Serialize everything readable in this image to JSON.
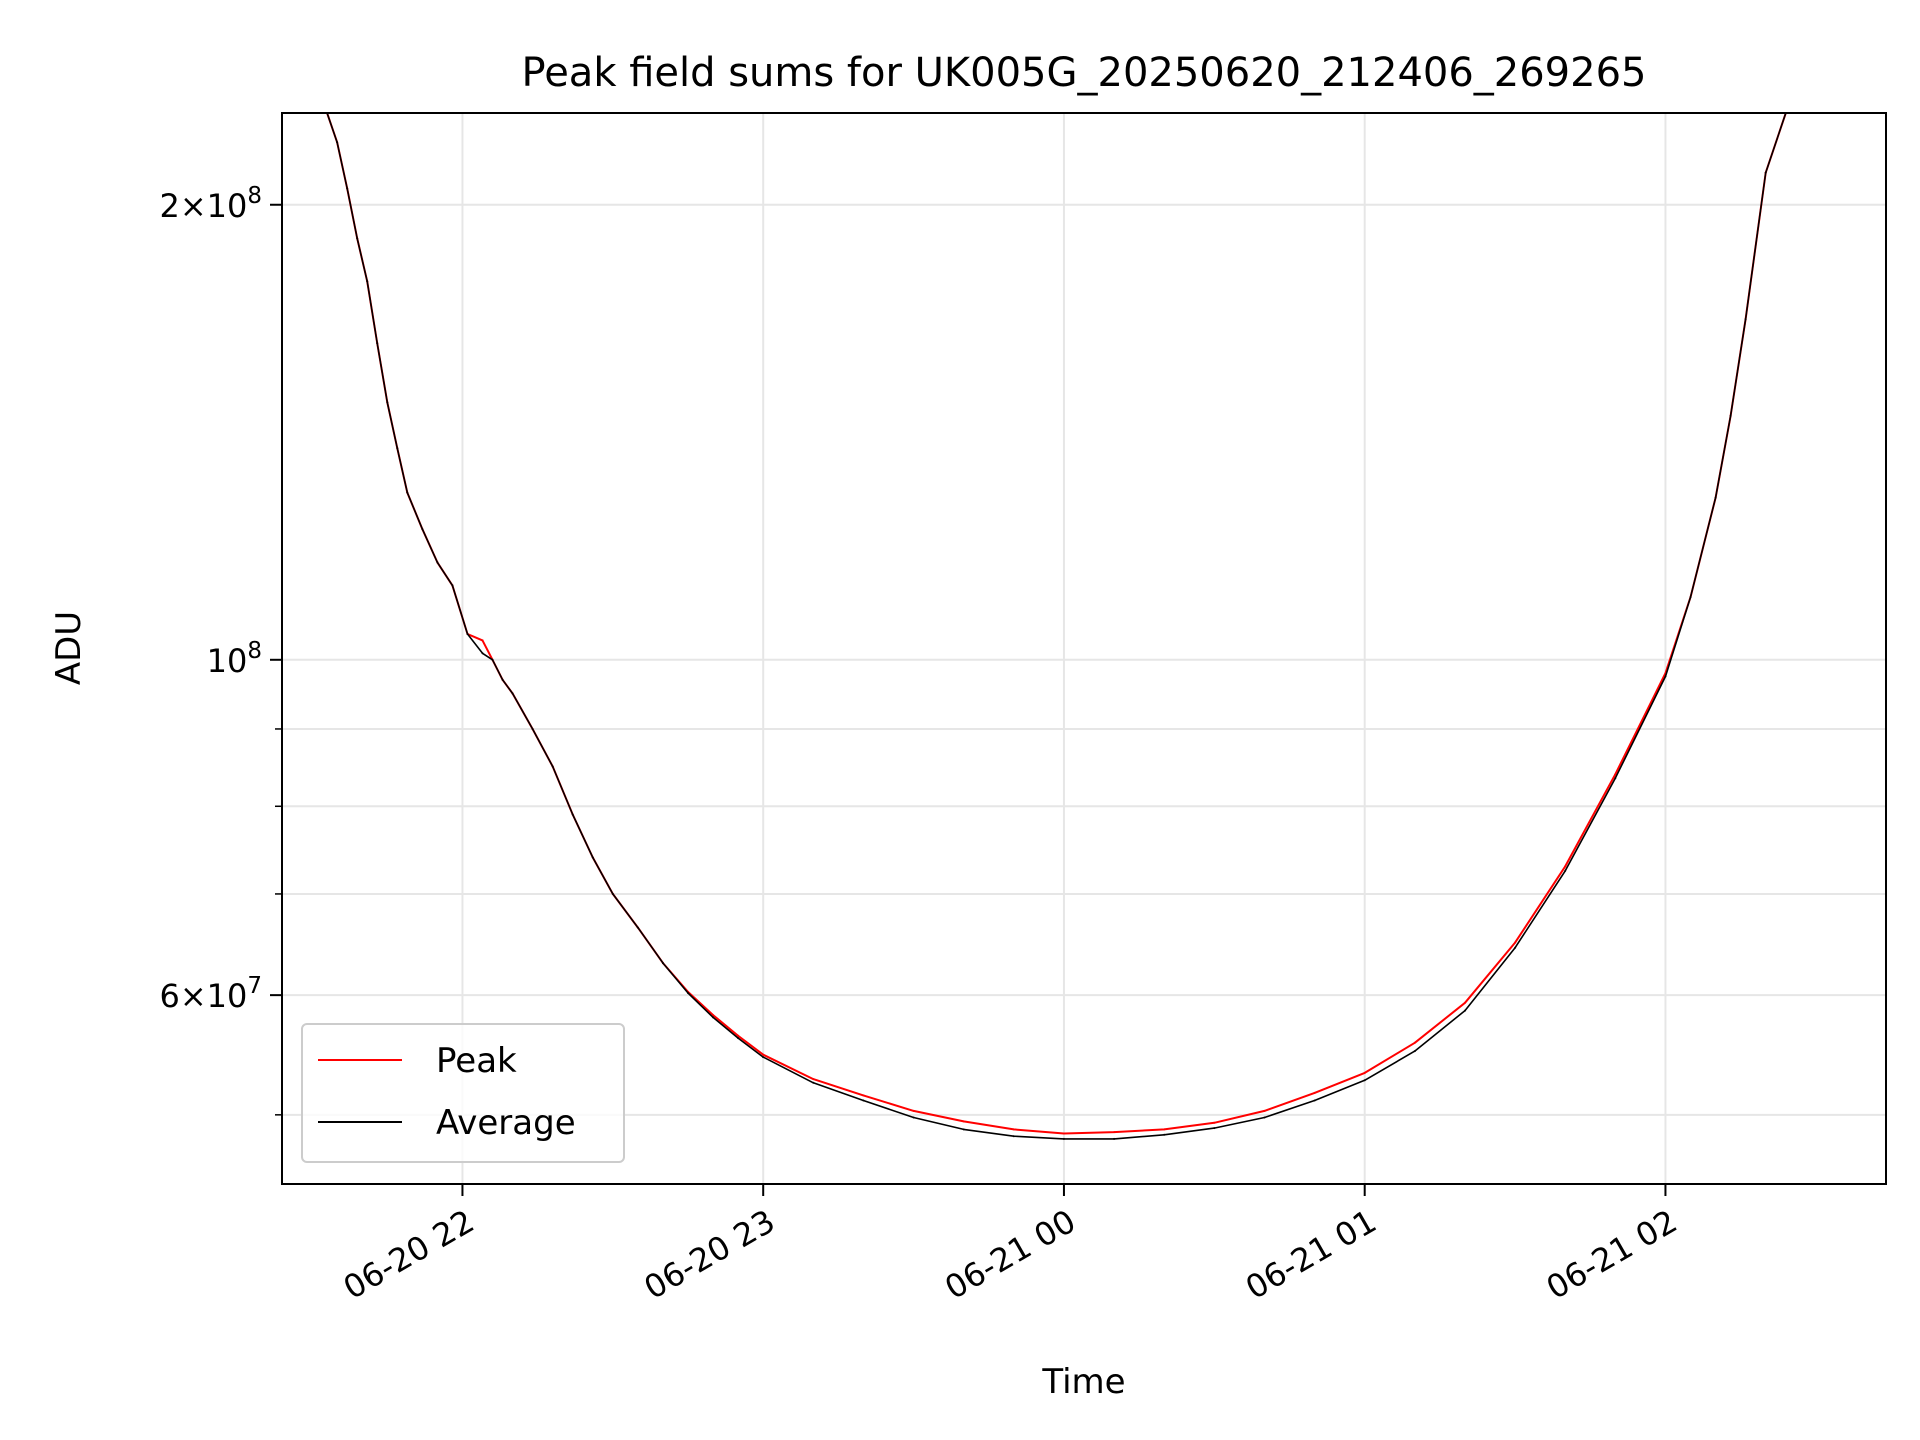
{
  "chart_data": {
    "type": "line",
    "title": "Peak field sums for UK005G_20250620_212406_269265",
    "xlabel": "Time",
    "ylabel": "ADU",
    "yscale": "log",
    "xlim": [
      "2025-06-20 21:24",
      "2025-06-21 02:44"
    ],
    "ylim": [
      45000000,
      230000000
    ],
    "x_ticks": [
      {
        "value": "2025-06-20 22:00",
        "label": "06-20 22"
      },
      {
        "value": "2025-06-20 23:00",
        "label": "06-20 23"
      },
      {
        "value": "2025-06-21 00:00",
        "label": "06-21 00"
      },
      {
        "value": "2025-06-21 01:00",
        "label": "06-21 01"
      },
      {
        "value": "2025-06-21 02:00",
        "label": "06-21 02"
      }
    ],
    "y_ticks": [
      {
        "value": 200000000,
        "base": "2",
        "times": "×",
        "pow": "10",
        "exp": "8"
      },
      {
        "value": 100000000,
        "base": "",
        "times": "",
        "pow": "10",
        "exp": "8"
      },
      {
        "value": 60000000,
        "base": "6",
        "times": "×",
        "pow": "10",
        "exp": "7"
      }
    ],
    "y_minor_ticks": [
      50000000,
      70000000,
      80000000,
      90000000
    ],
    "grid": true,
    "legend_position": "lower-left",
    "series": [
      {
        "name": "Peak",
        "color": "#ff0000",
        "x": [
          "2025-06-20 21:24",
          "2025-06-20 21:33",
          "2025-06-20 21:35",
          "2025-06-20 21:37",
          "2025-06-20 21:39",
          "2025-06-20 21:41",
          "2025-06-20 21:43",
          "2025-06-20 21:45",
          "2025-06-20 21:47",
          "2025-06-20 21:49",
          "2025-06-20 21:52",
          "2025-06-20 21:55",
          "2025-06-20 21:58",
          "2025-06-20 22:01",
          "2025-06-20 22:04",
          "2025-06-20 22:06",
          "2025-06-20 22:08",
          "2025-06-20 22:10",
          "2025-06-20 22:14",
          "2025-06-20 22:18",
          "2025-06-20 22:22",
          "2025-06-20 22:26",
          "2025-06-20 22:30",
          "2025-06-20 22:35",
          "2025-06-20 22:40",
          "2025-06-20 22:45",
          "2025-06-20 22:50",
          "2025-06-20 22:55",
          "2025-06-20 23:00",
          "2025-06-20 23:10",
          "2025-06-20 23:20",
          "2025-06-20 23:30",
          "2025-06-20 23:40",
          "2025-06-20 23:50",
          "2025-06-21 00:00",
          "2025-06-21 00:10",
          "2025-06-21 00:20",
          "2025-06-21 00:30",
          "2025-06-21 00:40",
          "2025-06-21 00:50",
          "2025-06-21 01:00",
          "2025-06-21 01:10",
          "2025-06-21 01:20",
          "2025-06-21 01:30",
          "2025-06-21 01:40",
          "2025-06-21 01:50",
          "2025-06-21 02:00",
          "2025-06-21 02:05",
          "2025-06-21 02:10",
          "2025-06-21 02:13",
          "2025-06-21 02:16",
          "2025-06-21 02:20",
          "2025-06-21 02:24",
          "2025-06-21 02:44"
        ],
        "y": [
          230000000,
          230000000,
          220000000,
          205000000,
          190000000,
          178000000,
          162000000,
          148000000,
          138000000,
          129000000,
          122000000,
          116000000,
          112000000,
          104000000,
          103000000,
          100000000,
          97000000,
          95000000,
          90000000,
          85000000,
          79000000,
          74000000,
          70000000,
          66500000,
          63000000,
          60300000,
          58200000,
          56400000,
          54800000,
          52800000,
          51500000,
          50300000,
          49500000,
          48900000,
          48600000,
          48700000,
          48900000,
          49400000,
          50300000,
          51700000,
          53300000,
          55800000,
          59300000,
          65000000,
          73000000,
          84000000,
          98000000,
          110000000,
          128000000,
          145000000,
          168000000,
          210000000,
          230000000,
          230000000
        ]
      },
      {
        "name": "Average",
        "color": "#000000",
        "x": [
          "2025-06-20 21:24",
          "2025-06-20 21:33",
          "2025-06-20 21:35",
          "2025-06-20 21:37",
          "2025-06-20 21:39",
          "2025-06-20 21:41",
          "2025-06-20 21:43",
          "2025-06-20 21:45",
          "2025-06-20 21:47",
          "2025-06-20 21:49",
          "2025-06-20 21:52",
          "2025-06-20 21:55",
          "2025-06-20 21:58",
          "2025-06-20 22:01",
          "2025-06-20 22:04",
          "2025-06-20 22:06",
          "2025-06-20 22:08",
          "2025-06-20 22:10",
          "2025-06-20 22:14",
          "2025-06-20 22:18",
          "2025-06-20 22:22",
          "2025-06-20 22:26",
          "2025-06-20 22:30",
          "2025-06-20 22:35",
          "2025-06-20 22:40",
          "2025-06-20 22:45",
          "2025-06-20 22:50",
          "2025-06-20 22:55",
          "2025-06-20 23:00",
          "2025-06-20 23:10",
          "2025-06-20 23:20",
          "2025-06-20 23:30",
          "2025-06-20 23:40",
          "2025-06-20 23:50",
          "2025-06-21 00:00",
          "2025-06-21 00:10",
          "2025-06-21 00:20",
          "2025-06-21 00:30",
          "2025-06-21 00:40",
          "2025-06-21 00:50",
          "2025-06-21 01:00",
          "2025-06-21 01:10",
          "2025-06-21 01:20",
          "2025-06-21 01:30",
          "2025-06-21 01:40",
          "2025-06-21 01:50",
          "2025-06-21 02:00",
          "2025-06-21 02:05",
          "2025-06-21 02:10",
          "2025-06-21 02:13",
          "2025-06-21 02:16",
          "2025-06-21 02:20",
          "2025-06-21 02:24",
          "2025-06-21 02:44"
        ],
        "y": [
          230000000,
          230000000,
          220000000,
          205000000,
          190000000,
          178000000,
          162000000,
          148000000,
          138000000,
          129000000,
          122000000,
          116000000,
          112000000,
          104000000,
          101000000,
          100000000,
          97000000,
          95000000,
          90000000,
          85000000,
          79000000,
          74000000,
          70000000,
          66500000,
          63000000,
          60200000,
          58000000,
          56200000,
          54600000,
          52500000,
          51100000,
          49800000,
          48900000,
          48400000,
          48200000,
          48200000,
          48500000,
          49000000,
          49800000,
          51100000,
          52700000,
          55100000,
          58600000,
          64500000,
          72500000,
          83500000,
          97500000,
          110000000,
          128000000,
          145000000,
          168000000,
          210000000,
          230000000,
          230000000
        ]
      }
    ]
  }
}
